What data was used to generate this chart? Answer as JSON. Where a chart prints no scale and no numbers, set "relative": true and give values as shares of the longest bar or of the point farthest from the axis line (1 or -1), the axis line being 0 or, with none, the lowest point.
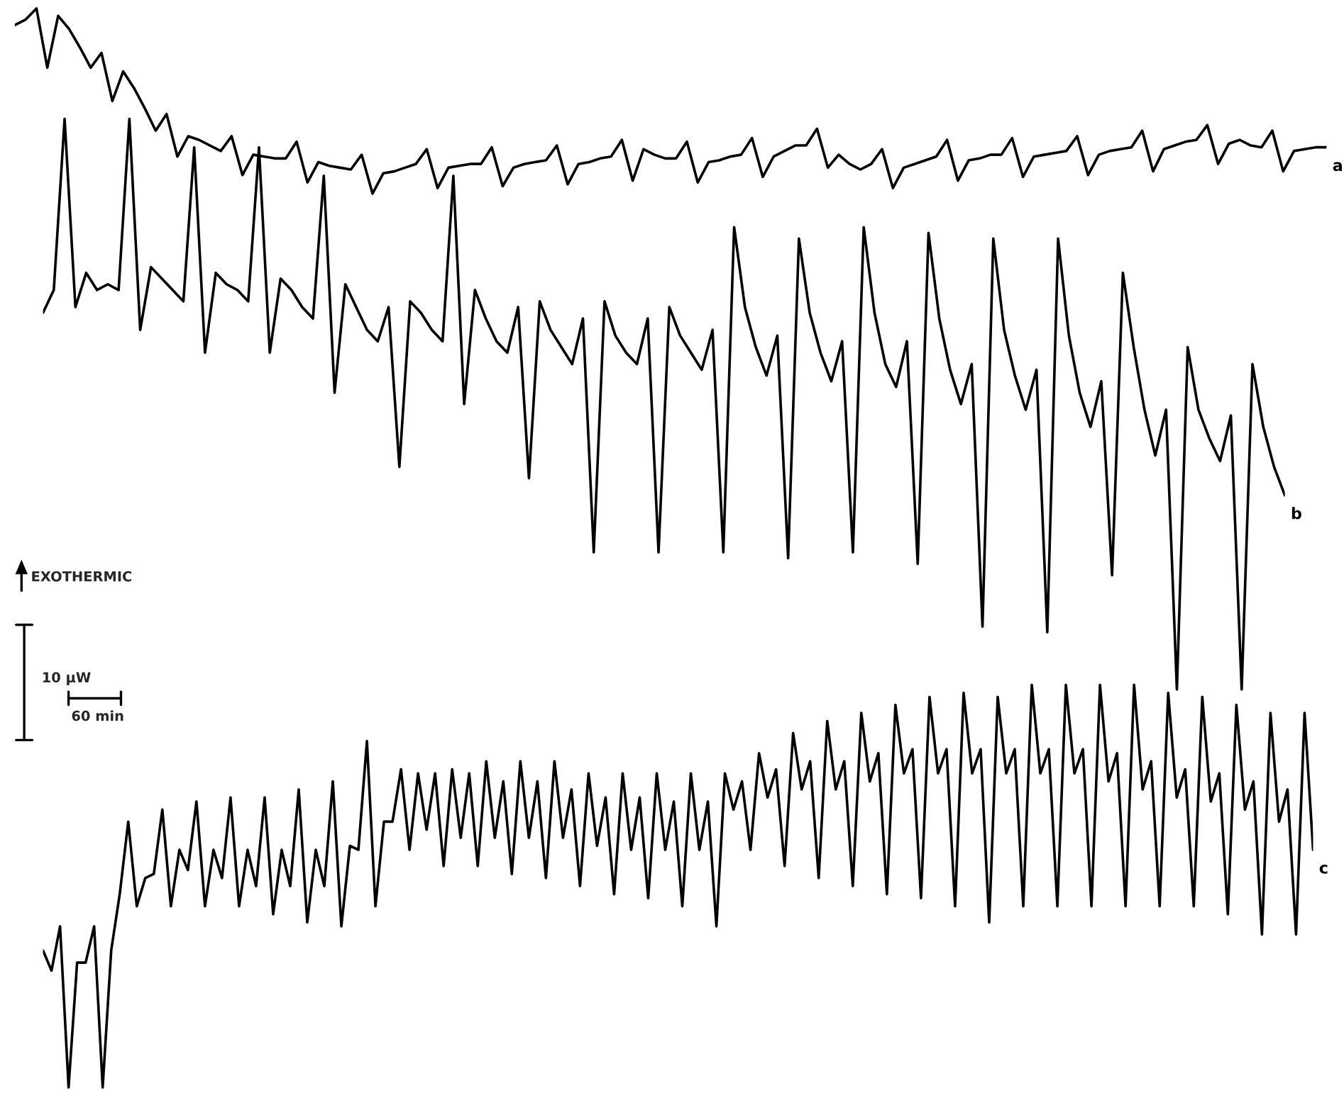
{
  "chart_data": [
    {
      "type": "line",
      "relative": true,
      "tick_labels": false,
      "categories": [
        null,
        null,
        null,
        null,
        null,
        null,
        null,
        null,
        null,
        null,
        null,
        null,
        null,
        null,
        null,
        null,
        null,
        null,
        null,
        null,
        null,
        null,
        null,
        null,
        null,
        null,
        null,
        null,
        null,
        null,
        null,
        null,
        null,
        null,
        null,
        null,
        null,
        null,
        null,
        null,
        null,
        null,
        null,
        null,
        null,
        null,
        null,
        null,
        null,
        null,
        null,
        null,
        null,
        null,
        null,
        null,
        null,
        null,
        null,
        null,
        null,
        null,
        null,
        null,
        null,
        null,
        null,
        null,
        null,
        null,
        null,
        null,
        null,
        null,
        null,
        null,
        null,
        null,
        null,
        null,
        null,
        null,
        null,
        null,
        null,
        null,
        null,
        null,
        null,
        null,
        null,
        null,
        null,
        null,
        null,
        null,
        null,
        null,
        null,
        null,
        null,
        null,
        null,
        null,
        null,
        null,
        null,
        null,
        null,
        null,
        null,
        null,
        null,
        null,
        null,
        null,
        null,
        null,
        null,
        null,
        null,
        null
      ],
      "series": [
        {
          "name": "a",
          "color": "#000000",
          "values": [
            0.91,
            0.94,
            1.0,
            0.68,
            0.96,
            0.89,
            0.79,
            0.68,
            0.76,
            0.5,
            0.66,
            0.57,
            0.46,
            0.34,
            0.43,
            0.2,
            0.31,
            0.29,
            0.26,
            0.23,
            0.31,
            0.1,
            0.21,
            0.2,
            0.19,
            0.19,
            0.28,
            0.06,
            0.17,
            0.15,
            0.14,
            0.13,
            0.21,
            0.0,
            0.11,
            0.12,
            0.14,
            0.16,
            0.24,
            0.03,
            0.14,
            0.15,
            0.16,
            0.16,
            0.25,
            0.04,
            0.14,
            0.16,
            0.17,
            0.18,
            0.26,
            0.05,
            0.16,
            0.17,
            0.19,
            0.2,
            0.29,
            0.07,
            0.24,
            0.21,
            0.19,
            0.19,
            0.28,
            0.06,
            0.17,
            0.18,
            0.2,
            0.21,
            0.3,
            0.09,
            0.2,
            0.23,
            0.26,
            0.26,
            0.35,
            0.14,
            0.21,
            0.16,
            0.13,
            0.16,
            0.24,
            0.03,
            0.14,
            0.16,
            0.18,
            0.2,
            0.29,
            0.07,
            0.18,
            0.19,
            0.21,
            0.21,
            0.3,
            0.09,
            0.2,
            0.21,
            0.22,
            0.23,
            0.31,
            0.1,
            0.21,
            0.23,
            0.24,
            0.25,
            0.34,
            0.12,
            0.24,
            0.26,
            0.28,
            0.29,
            0.37,
            0.16,
            0.27,
            0.29,
            0.26,
            0.25,
            0.34,
            0.12,
            0.23,
            0.24,
            0.25,
            0.25
          ]
        }
      ]
    },
    {
      "type": "line",
      "relative": true,
      "tick_labels": false,
      "annotations": [
        "EXOTHERMIC",
        "10 μW",
        "60 min"
      ],
      "categories": [
        null,
        null,
        null,
        null,
        null,
        null,
        null,
        null,
        null,
        null,
        null,
        null,
        null,
        null,
        null,
        null,
        null,
        null,
        null,
        null,
        null,
        null,
        null,
        null,
        null,
        null,
        null,
        null,
        null,
        null,
        null,
        null,
        null,
        null,
        null,
        null,
        null,
        null,
        null,
        null,
        null,
        null,
        null,
        null,
        null,
        null,
        null,
        null,
        null,
        null,
        null,
        null,
        null,
        null,
        null,
        null,
        null,
        null,
        null,
        null,
        null,
        null,
        null,
        null,
        null,
        null,
        null,
        null,
        null,
        null,
        null,
        null,
        null,
        null,
        null,
        null,
        null,
        null,
        null,
        null,
        null,
        null,
        null,
        null,
        null,
        null,
        null,
        null,
        null,
        null,
        null,
        null,
        null,
        null,
        null,
        null,
        null,
        null,
        null,
        null,
        null,
        null,
        null,
        null,
        null,
        null,
        null,
        null,
        null,
        null,
        null,
        null,
        null,
        null,
        null,
        null
      ],
      "series": [
        {
          "name": "b",
          "color": "#000000",
          "values": [
            0.66,
            0.7,
            1.0,
            0.67,
            0.73,
            0.7,
            0.71,
            0.7,
            1.0,
            0.63,
            0.74,
            0.72,
            0.7,
            0.68,
            0.95,
            0.59,
            0.73,
            0.71,
            0.7,
            0.68,
            0.95,
            0.59,
            0.72,
            0.7,
            0.67,
            0.65,
            0.9,
            0.52,
            0.71,
            0.67,
            0.63,
            0.61,
            0.67,
            0.39,
            0.68,
            0.66,
            0.63,
            0.61,
            0.9,
            0.5,
            0.7,
            0.65,
            0.61,
            0.59,
            0.67,
            0.37,
            0.68,
            0.63,
            0.6,
            0.57,
            0.65,
            0.24,
            0.68,
            0.62,
            0.59,
            0.57,
            0.65,
            0.24,
            0.67,
            0.62,
            0.59,
            0.56,
            0.63,
            0.24,
            0.81,
            0.67,
            0.6,
            0.55,
            0.62,
            0.23,
            0.79,
            0.66,
            0.59,
            0.54,
            0.61,
            0.24,
            0.81,
            0.66,
            0.57,
            0.53,
            0.61,
            0.22,
            0.8,
            0.65,
            0.56,
            0.5,
            0.57,
            0.11,
            0.79,
            0.63,
            0.55,
            0.49,
            0.56,
            0.1,
            0.79,
            0.62,
            0.52,
            0.46,
            0.54,
            0.2,
            0.73,
            0.6,
            0.49,
            0.41,
            0.49,
            0.0,
            0.6,
            0.49,
            0.44,
            0.4,
            0.48,
            0.0,
            0.57,
            0.46,
            0.39,
            0.34
          ]
        }
      ]
    },
    {
      "type": "line",
      "relative": true,
      "tick_labels": false,
      "categories": [
        null,
        null,
        null,
        null,
        null,
        null,
        null,
        null,
        null,
        null,
        null,
        null,
        null,
        null,
        null,
        null,
        null,
        null,
        null,
        null,
        null,
        null,
        null,
        null,
        null,
        null,
        null,
        null,
        null,
        null,
        null,
        null,
        null,
        null,
        null,
        null,
        null,
        null,
        null,
        null,
        null,
        null,
        null,
        null,
        null,
        null,
        null,
        null,
        null,
        null,
        null,
        null,
        null,
        null,
        null,
        null,
        null,
        null,
        null,
        null,
        null,
        null,
        null,
        null,
        null,
        null,
        null,
        null,
        null,
        null,
        null,
        null,
        null,
        null,
        null,
        null,
        null,
        null,
        null,
        null,
        null,
        null,
        null,
        null,
        null,
        null,
        null,
        null,
        null,
        null,
        null,
        null,
        null,
        null,
        null,
        null,
        null,
        null,
        null,
        null,
        null,
        null,
        null,
        null,
        null,
        null,
        null,
        null,
        null,
        null,
        null,
        null,
        null,
        null,
        null,
        null,
        null,
        null,
        null,
        null,
        null,
        null,
        null,
        null,
        null,
        null,
        null,
        null,
        null,
        null,
        null,
        null,
        null,
        null,
        null,
        null,
        null,
        null,
        null,
        null,
        null,
        null,
        null,
        null,
        null,
        null,
        null,
        null,
        null,
        null
      ],
      "series": [
        {
          "name": "c",
          "color": "#000000",
          "values": [
            0.34,
            0.29,
            0.4,
            0.0,
            0.31,
            0.31,
            0.4,
            0.0,
            0.34,
            0.48,
            0.66,
            0.45,
            0.52,
            0.53,
            0.69,
            0.45,
            0.59,
            0.54,
            0.71,
            0.45,
            0.59,
            0.52,
            0.72,
            0.45,
            0.59,
            0.5,
            0.72,
            0.43,
            0.59,
            0.5,
            0.74,
            0.41,
            0.59,
            0.5,
            0.76,
            0.4,
            0.6,
            0.59,
            0.86,
            0.45,
            0.66,
            0.66,
            0.79,
            0.59,
            0.78,
            0.64,
            0.78,
            0.55,
            0.79,
            0.62,
            0.78,
            0.55,
            0.81,
            0.62,
            0.76,
            0.53,
            0.81,
            0.62,
            0.76,
            0.52,
            0.81,
            0.62,
            0.74,
            0.5,
            0.78,
            0.6,
            0.72,
            0.48,
            0.78,
            0.59,
            0.72,
            0.47,
            0.78,
            0.59,
            0.71,
            0.45,
            0.78,
            0.59,
            0.71,
            0.4,
            0.78,
            0.69,
            0.76,
            0.59,
            0.83,
            0.72,
            0.79,
            0.55,
            0.88,
            0.74,
            0.81,
            0.52,
            0.91,
            0.74,
            0.81,
            0.5,
            0.93,
            0.76,
            0.83,
            0.48,
            0.95,
            0.78,
            0.84,
            0.47,
            0.97,
            0.78,
            0.84,
            0.45,
            0.98,
            0.78,
            0.84,
            0.41,
            0.97,
            0.78,
            0.84,
            0.45,
            1.0,
            0.78,
            0.84,
            0.45,
            1.0,
            0.78,
            0.84,
            0.45,
            1.0,
            0.76,
            0.83,
            0.45,
            1.0,
            0.74,
            0.81,
            0.45,
            0.98,
            0.72,
            0.79,
            0.45,
            0.97,
            0.71,
            0.78,
            0.43,
            0.95,
            0.69,
            0.76,
            0.38,
            0.93,
            0.66,
            0.74,
            0.38,
            0.93,
            0.59
          ]
        }
      ]
    }
  ]
}
